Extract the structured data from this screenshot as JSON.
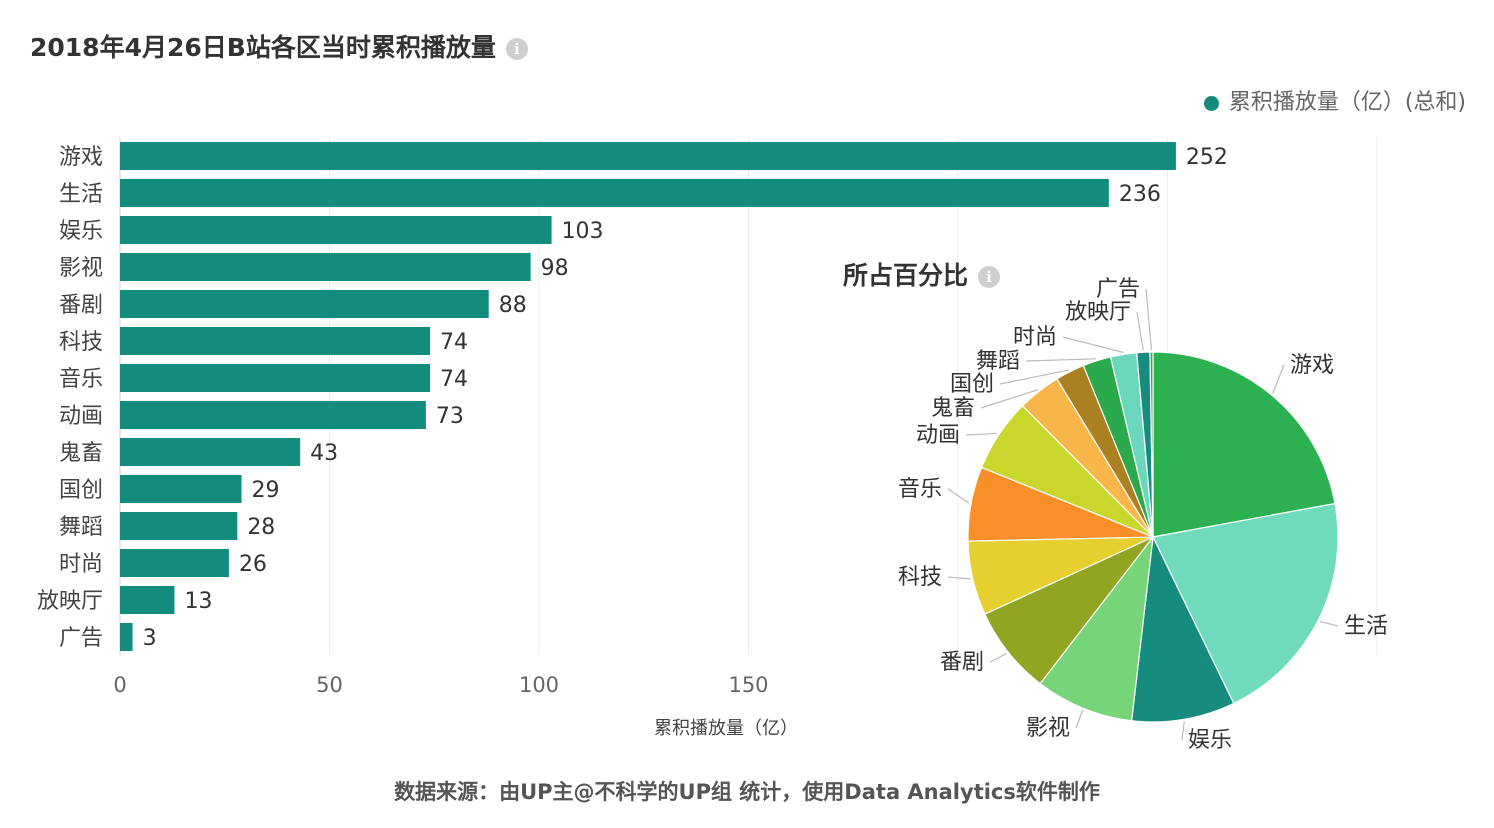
{
  "title": "2018年4月26日B站各区当时累积播放量",
  "legend": {
    "label": "累积播放量（亿）(总和)",
    "color": "#148c7d"
  },
  "pie": {
    "title": "所占百分比",
    "colors": [
      "#2db052",
      "#6fdbbc",
      "#158c7e",
      "#76d479",
      "#91a522",
      "#e6d02f",
      "#f98f28",
      "#c9d62c",
      "#f8b64b",
      "#a98121",
      "#2aaa4c",
      "#6bd7bd",
      "#158c7e",
      "#43a848"
    ]
  },
  "source": "数据来源：由UP主@不科学的UP组 统计，使用Data Analytics软件制作",
  "chart_data": {
    "type": "bar",
    "orientation": "horizontal",
    "categories": [
      "游戏",
      "生活",
      "娱乐",
      "影视",
      "番剧",
      "科技",
      "音乐",
      "动画",
      "鬼畜",
      "国创",
      "舞蹈",
      "时尚",
      "放映厅",
      "广告"
    ],
    "values": [
      252,
      236,
      103,
      98,
      88,
      74,
      74,
      73,
      43,
      29,
      28,
      26,
      13,
      3
    ],
    "xlabel": "累积播放量（亿）",
    "xlim": [
      0,
      300
    ],
    "xticks": [
      0,
      50,
      100,
      150
    ],
    "bar_color": "#148c7d"
  }
}
